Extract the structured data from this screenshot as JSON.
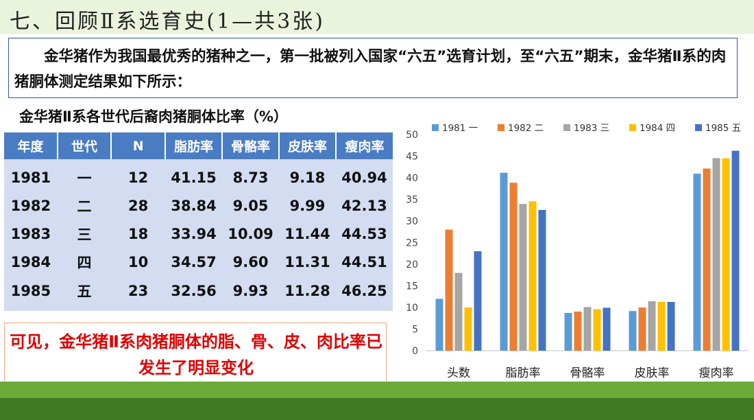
{
  "header": {
    "title": "七、回顾Ⅱ系选育史(1—共3张)"
  },
  "intro": {
    "text": "金华猪作为我国最优秀的猪种之一，第一批被列入国家“六五”选育计划，至“六五”期末，金华猪Ⅱ系的肉猪胴体测定结果如下所示："
  },
  "table": {
    "title": "金华猪Ⅱ系各世代后裔肉猪胴体比率（%）",
    "columns": [
      "年度",
      "世代",
      "N",
      "脂肪率",
      "骨骼率",
      "皮肤率",
      "瘦肉率"
    ],
    "rows": [
      [
        "1981",
        "一",
        "12",
        "41.15",
        "8.73",
        "9.18",
        "40.94"
      ],
      [
        "1982",
        "二",
        "28",
        "38.84",
        "9.05",
        "9.99",
        "42.13"
      ],
      [
        "1983",
        "三",
        "18",
        "33.94",
        "10.09",
        "11.44",
        "44.53"
      ],
      [
        "1984",
        "四",
        "10",
        "34.57",
        "9.60",
        "11.31",
        "44.51"
      ],
      [
        "1985",
        "五",
        "23",
        "32.56",
        "9.93",
        "11.28",
        "46.25"
      ]
    ]
  },
  "conclusion": {
    "text": "可见，金华猪Ⅱ系肉猪胴体的脂、骨、皮、肉比率已发生了明显变化"
  },
  "colors": {
    "header_bg": "#4a7cc4",
    "cell_bg": "#d3dcf0",
    "title_bar": "#eaf4dc",
    "conclusion_text": "#e00000"
  },
  "chart_data": {
    "type": "bar",
    "title": "",
    "xlabel": "",
    "ylabel": "",
    "categories": [
      "头数",
      "脂肪率",
      "骨骼率",
      "皮肤率",
      "瘦肉率"
    ],
    "ylim": [
      0,
      50
    ],
    "yticks": [
      0,
      5,
      10,
      15,
      20,
      25,
      30,
      35,
      40,
      45,
      50
    ],
    "grid": false,
    "legend": "top",
    "series": [
      {
        "name": "1981 一",
        "color": "#5b9bd5",
        "values": [
          12,
          41.15,
          8.73,
          9.18,
          40.94
        ]
      },
      {
        "name": "1982 二",
        "color": "#ed7d31",
        "values": [
          28,
          38.84,
          9.05,
          9.99,
          42.13
        ]
      },
      {
        "name": "1983 三",
        "color": "#a5a5a5",
        "values": [
          18,
          33.94,
          10.09,
          11.44,
          44.53
        ]
      },
      {
        "name": "1984 四",
        "color": "#ffc000",
        "values": [
          10,
          34.57,
          9.6,
          11.31,
          44.51
        ]
      },
      {
        "name": "1985 五",
        "color": "#4472c4",
        "values": [
          23,
          32.56,
          9.93,
          11.28,
          46.25
        ]
      }
    ]
  }
}
